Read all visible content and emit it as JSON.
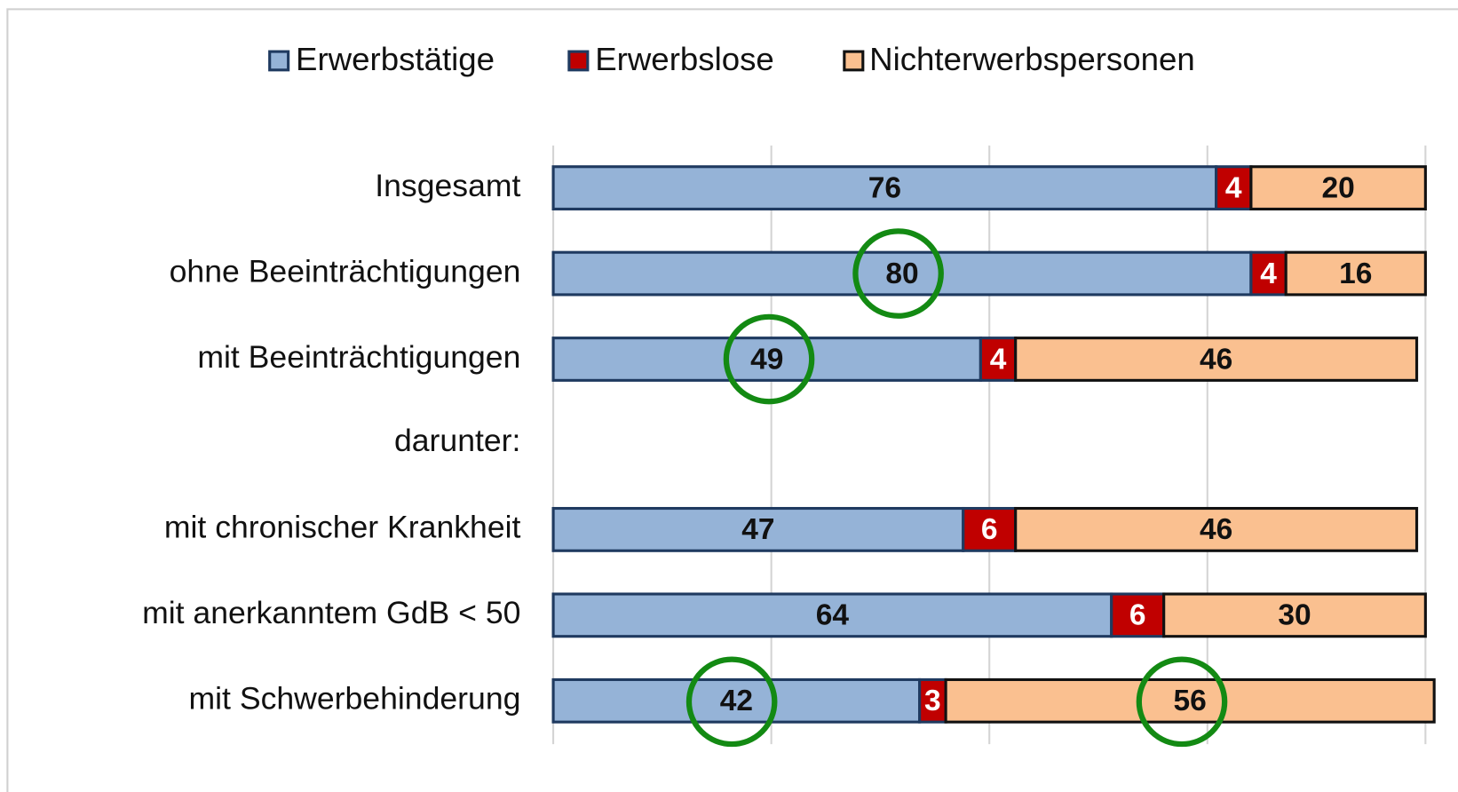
{
  "chart_data": {
    "type": "stacked-bar-horizontal",
    "categories": [
      "Insgesamt",
      "ohne Beeinträchtigungen",
      "mit Beeinträchtigungen",
      "darunter:",
      "mit chronischer Krankheit",
      "mit anerkanntem GdB < 50",
      "mit Schwerbehinderung"
    ],
    "series": [
      {
        "name": "Erwerbstätige",
        "color": "#95b3d7",
        "values": [
          76,
          80,
          49,
          null,
          47,
          64,
          42
        ]
      },
      {
        "name": "Erwerbslose",
        "color": "#c00000",
        "values": [
          4,
          4,
          4,
          null,
          6,
          6,
          3
        ]
      },
      {
        "name": "Nichterwerbspersonen",
        "color": "#fac090",
        "values": [
          20,
          16,
          46,
          null,
          46,
          30,
          56
        ]
      }
    ],
    "xlim": [
      0,
      100
    ],
    "xticks": [
      0,
      25,
      50,
      75,
      100
    ],
    "grid": true,
    "legend": "top"
  }
}
